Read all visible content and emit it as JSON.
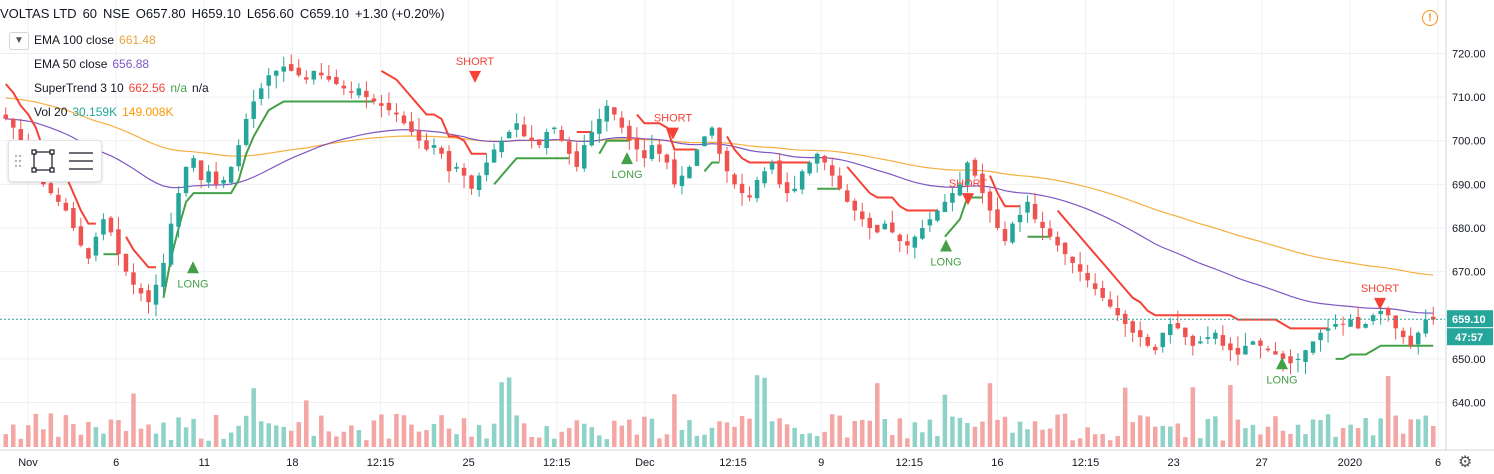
{
  "header": {
    "symbol": "VOLTAS LTD",
    "interval": "60",
    "exchange": "NSE",
    "open": "O657.80",
    "high": "H659.10",
    "low": "L656.60",
    "close": "C659.10",
    "change": "+1.30 (+0.20%)"
  },
  "legend": {
    "ema100_label": "EMA 100 close",
    "ema100_value": "661.48",
    "ema50_label": "EMA 50 close",
    "ema50_value": "656.88",
    "st_label": "SuperTrend 3 10",
    "st_value": "662.56",
    "st_na1": "n/a",
    "st_na2": "n/a",
    "vol_label": "Vol 20",
    "vol_value1": "30.159K",
    "vol_value2": "149.008K"
  },
  "colors": {
    "up": "#26a69a",
    "down": "#ef5350",
    "ema100": "#f5b041",
    "ema50": "#7e57c2",
    "st_up": "#43a047",
    "st_down": "#f44336",
    "vol_up": "#8fd3c8",
    "vol_down": "#f4a6a4",
    "grid": "#eef0f4"
  },
  "chart_data": {
    "type": "candlestick",
    "y_ticks": [
      "720.00",
      "710.00",
      "700.00",
      "690.00",
      "680.00",
      "670.00",
      "660.00",
      "650.00",
      "640.00"
    ],
    "ylim": [
      636,
      724
    ],
    "x_ticks": [
      "Nov",
      "6",
      "11",
      "18",
      "12:15",
      "25",
      "12:15",
      "Dec",
      "12:15",
      "9",
      "12:15",
      "16",
      "12:15",
      "23",
      "27",
      "2020",
      "6"
    ],
    "last_price": "659.10",
    "countdown": "47:57",
    "annotations": [
      {
        "label": "SHORT",
        "price": 716
      },
      {
        "label": "LONG",
        "price": 671
      },
      {
        "label": "LONG",
        "price": 696
      },
      {
        "label": "SHORT",
        "price": 703
      },
      {
        "label": "LONG",
        "price": 676
      },
      {
        "label": "SHORT",
        "price": 688
      },
      {
        "label": "LONG",
        "price": 649
      },
      {
        "label": "SHORT",
        "price": 664
      }
    ],
    "close_series": [
      705,
      703,
      700,
      698,
      695,
      690,
      688,
      686,
      684,
      680,
      676,
      673,
      678,
      682,
      679,
      674,
      670,
      667,
      665,
      663,
      667,
      672,
      681,
      688,
      694,
      696,
      691,
      693,
      690,
      691,
      694,
      699,
      705,
      709,
      712,
      715,
      716,
      717,
      716,
      715,
      714,
      716,
      715,
      714,
      713,
      712,
      711,
      712,
      710,
      709,
      708,
      707,
      706,
      704,
      702,
      700,
      698,
      699,
      697,
      693,
      694,
      692,
      689,
      692,
      695,
      698,
      700,
      702,
      704,
      701,
      700,
      699,
      702,
      703,
      700,
      697,
      694,
      699,
      702,
      705,
      708,
      706,
      703,
      700,
      698,
      696,
      699,
      697,
      695,
      690,
      692,
      694,
      698,
      701,
      703,
      697,
      693,
      690,
      688,
      687,
      691,
      693,
      695,
      690,
      688,
      689,
      693,
      695,
      697,
      695,
      692,
      689,
      686,
      684,
      682,
      680,
      679,
      681,
      679,
      677,
      676,
      678,
      680,
      682,
      684,
      686,
      688,
      690,
      695,
      692,
      688,
      684,
      680,
      677,
      681,
      683,
      686,
      682,
      680,
      678,
      676,
      674,
      672,
      670,
      668,
      666,
      664,
      662,
      660,
      658,
      656,
      655,
      653,
      652,
      656,
      658,
      657,
      655,
      653,
      654,
      655,
      656,
      653,
      652,
      651,
      653,
      654,
      653,
      652,
      651,
      650,
      649,
      650,
      652,
      654,
      656,
      657,
      658,
      658,
      659,
      657,
      658,
      660,
      661,
      660,
      657,
      655,
      653,
      656,
      659,
      659
    ]
  }
}
